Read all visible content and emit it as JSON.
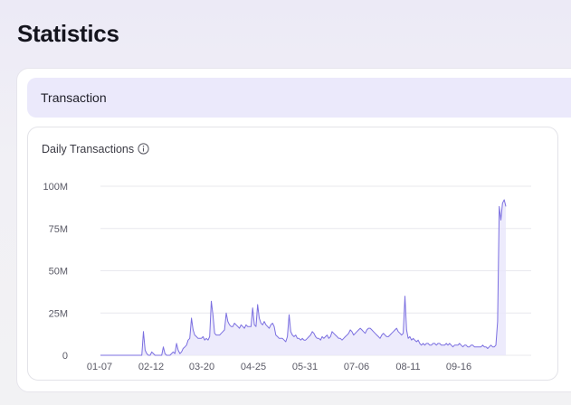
{
  "page": {
    "title": "Statistics"
  },
  "section": {
    "title": "Transaction"
  },
  "chart_card": {
    "title": "Daily Transactions",
    "info_icon": "info-circle-icon"
  },
  "colors": {
    "line": "#7b6fe0",
    "fill": "#e9e6fb",
    "grid": "#e8e8ee",
    "header_bg": "#ebe9fb"
  },
  "chart_data": {
    "type": "area",
    "title": "Daily Transactions",
    "xlabel": "",
    "ylabel": "",
    "ylim": [
      0,
      100000000
    ],
    "yticks": [
      {
        "value": 0,
        "label": "0"
      },
      {
        "value": 25000000,
        "label": "25M"
      },
      {
        "value": 50000000,
        "label": "50M"
      },
      {
        "value": 75000000,
        "label": "75M"
      },
      {
        "value": 100000000,
        "label": "100M"
      }
    ],
    "xticks": [
      "01-07",
      "02-12",
      "03-20",
      "04-25",
      "05-31",
      "07-06",
      "08-11",
      "09-16"
    ],
    "grid": true,
    "series": [
      {
        "values_millions": [
          0,
          0,
          0,
          0,
          0,
          0,
          0,
          0,
          0,
          0,
          0,
          0,
          0,
          0,
          0,
          0,
          0,
          0,
          0,
          0,
          0,
          0,
          0,
          0,
          0,
          0,
          14,
          3,
          1,
          0,
          0,
          2,
          1,
          0,
          0,
          0,
          0,
          0,
          5,
          1,
          0,
          0,
          0,
          1,
          2,
          1,
          7,
          3,
          1,
          2,
          4,
          5,
          6,
          9,
          10,
          22,
          15,
          12,
          11,
          10,
          10,
          10,
          11,
          9,
          10,
          9,
          11,
          32,
          24,
          13,
          12,
          12,
          12,
          13,
          14,
          15,
          25,
          20,
          18,
          17,
          17,
          19,
          18,
          17,
          16,
          18,
          17,
          16,
          18,
          17,
          17,
          17,
          28,
          18,
          17,
          30,
          22,
          19,
          18,
          20,
          18,
          17,
          16,
          18,
          19,
          17,
          12,
          11,
          10,
          10,
          10,
          9,
          8,
          11,
          24,
          14,
          12,
          11,
          12,
          10,
          10,
          9,
          10,
          9,
          9,
          10,
          11,
          12,
          14,
          13,
          11,
          10,
          10,
          9,
          11,
          10,
          11,
          12,
          10,
          11,
          14,
          13,
          12,
          11,
          10,
          10,
          9,
          10,
          11,
          12,
          13,
          15,
          14,
          12,
          13,
          14,
          15,
          16,
          15,
          14,
          13,
          15,
          16,
          16,
          15,
          14,
          13,
          12,
          11,
          10,
          12,
          13,
          12,
          11,
          11,
          12,
          13,
          14,
          15,
          16,
          14,
          13,
          12,
          13,
          35,
          15,
          10,
          11,
          9,
          10,
          9,
          8,
          9,
          7,
          6,
          7,
          6,
          7,
          7,
          6,
          6,
          7,
          7,
          6,
          7,
          7,
          6,
          6,
          6,
          7,
          6,
          7,
          6,
          5,
          6,
          6,
          6,
          7,
          6,
          5,
          6,
          6,
          5,
          5,
          6,
          6,
          5,
          5,
          5,
          5,
          5,
          6,
          5,
          5,
          4,
          5,
          6,
          5,
          5,
          6,
          20,
          88,
          80,
          90,
          92,
          88
        ]
      }
    ]
  }
}
